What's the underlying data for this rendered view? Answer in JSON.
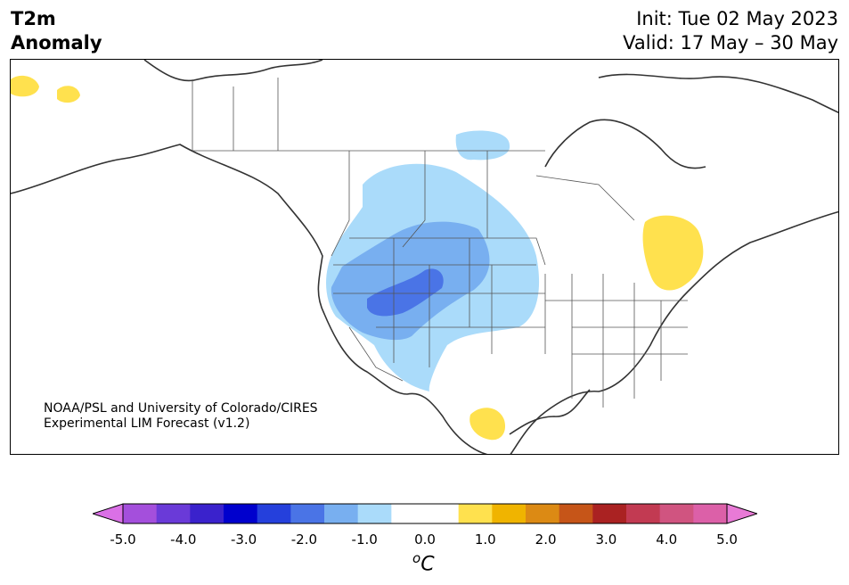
{
  "header": {
    "variable": "T2m",
    "variable_sub": "Anomaly",
    "init": "Init: Tue 02 May 2023",
    "valid": "Valid: 17 May – 30 May"
  },
  "map": {
    "projection": "North America",
    "credit_line1": "NOAA/PSL and University of Colorado/CIRES",
    "credit_line2": "Experimental LIM Forecast (v1.2)",
    "coast_color": "#333333",
    "border_color": "#555555",
    "anomaly_regions": [
      {
        "region": "western US / northern Rockies",
        "value_range": "-0.5 to -1.0"
      },
      {
        "region": "Great Basin / central Rockies",
        "value_range": "-1.0 to -1.5"
      },
      {
        "region": "Utah / Wyoming core",
        "value_range": "-1.5 to -2.0"
      },
      {
        "region": "Canadian prairies (north)",
        "value_range": "-0.5 to -1.0"
      },
      {
        "region": "Ontario / Great Lakes",
        "value_range": "0.5 to 1.0"
      },
      {
        "region": "northern Mexico",
        "value_range": "0.5 to 1.0"
      },
      {
        "region": "Alaska",
        "value_range": "0.5 to 1.0"
      }
    ]
  },
  "colorbar": {
    "unit": "C",
    "unit_prefix": "o",
    "tick_labels": [
      "-5.0",
      "-4.0",
      "-3.0",
      "-2.0",
      "-1.0",
      "0.0",
      "1.0",
      "2.0",
      "3.0",
      "4.0",
      "5.0"
    ],
    "low_extend_color": "#da70e6",
    "high_extend_color": "#e87ad6",
    "colors": [
      "#a44fdc",
      "#6a3ad8",
      "#3a22cc",
      "#0000cd",
      "#2540dc",
      "#4a74e6",
      "#78aff0",
      "#aadbfa",
      "#ffffff",
      "#ffffff",
      "#ffe14e",
      "#f0b400",
      "#dc8a14",
      "#c65518",
      "#aa2222",
      "#c23a52",
      "#d05480",
      "#dc60a8"
    ]
  }
}
